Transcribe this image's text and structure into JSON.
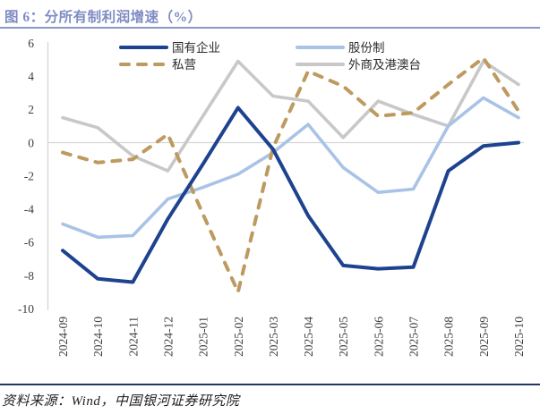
{
  "header": {
    "title": "图 6：分所有制利润增速（%）"
  },
  "footer": {
    "source": "资料来源：Wind，中国银河证券研究院"
  },
  "chart_data": {
    "type": "line",
    "title": "分所有制利润增速（%）",
    "categories": [
      "2024-09",
      "2024-10",
      "2024-11",
      "2024-12",
      "2025-01",
      "2025-02",
      "2025-03",
      "2025-04",
      "2025-05",
      "2025-06",
      "2025-07",
      "2025-08",
      "2025-09",
      "2025-10"
    ],
    "series": [
      {
        "name": "国有企业",
        "color": "#1D428F",
        "dash": false,
        "values": [
          -6.5,
          -8.2,
          -8.4,
          -4.6,
          -1.3,
          2.1,
          -0.4,
          -4.4,
          -7.4,
          -7.6,
          -7.5,
          -1.7,
          -0.2,
          0.0
        ]
      },
      {
        "name": "股份制",
        "color": "#A9C3E6",
        "dash": false,
        "values": [
          -4.9,
          -5.7,
          -5.6,
          -3.4,
          -2.7,
          -1.9,
          -0.6,
          1.1,
          -1.5,
          -3.0,
          -2.8,
          1.0,
          2.7,
          1.5
        ]
      },
      {
        "name": "私营",
        "color": "#BD9A5F",
        "dash": true,
        "values": [
          -0.6,
          -1.2,
          -1.0,
          0.5,
          -4.3,
          -9.0,
          -0.3,
          4.3,
          3.4,
          1.6,
          1.8,
          3.5,
          5.1,
          1.9
        ]
      },
      {
        "name": "外商及港澳台",
        "color": "#C8C8C8",
        "dash": false,
        "values": [
          1.5,
          0.9,
          -0.8,
          -1.7,
          1.6,
          4.9,
          2.8,
          2.5,
          0.3,
          2.5,
          1.7,
          1.0,
          4.9,
          3.5
        ]
      }
    ],
    "ylim": [
      -10,
      6
    ],
    "ytick_step": 2,
    "xlabel": "",
    "ylabel": "",
    "grid": "zero-line-only",
    "legend_position": "top-inside-two-columns",
    "axis_color": "#D6D6D6",
    "tick_label_color": "#3F3F3F",
    "legend_label_color": "#2B2B2B"
  }
}
